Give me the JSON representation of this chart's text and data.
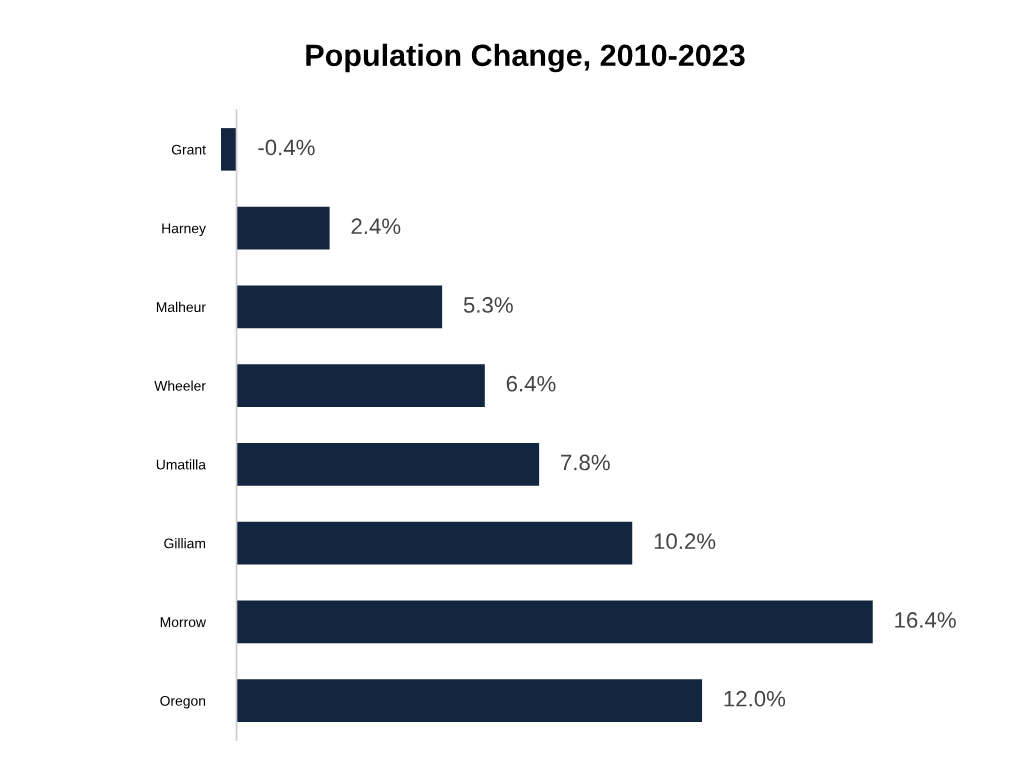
{
  "chart_data": {
    "type": "bar",
    "orientation": "horizontal",
    "title": "Population Change, 2010-2023",
    "categories": [
      "Grant",
      "Harney",
      "Malheur",
      "Wheeler",
      "Umatilla",
      "Gilliam",
      "Morrow",
      "Oregon"
    ],
    "values": [
      -0.4,
      2.4,
      5.3,
      6.4,
      7.8,
      10.2,
      16.4,
      12.0
    ],
    "value_labels": [
      "-0.4%",
      "2.4%",
      "5.3%",
      "6.4%",
      "7.8%",
      "10.2%",
      "16.4%",
      "12.0%"
    ],
    "color": "#12263f",
    "grid": false,
    "legend": false,
    "tick_labels": "y"
  }
}
